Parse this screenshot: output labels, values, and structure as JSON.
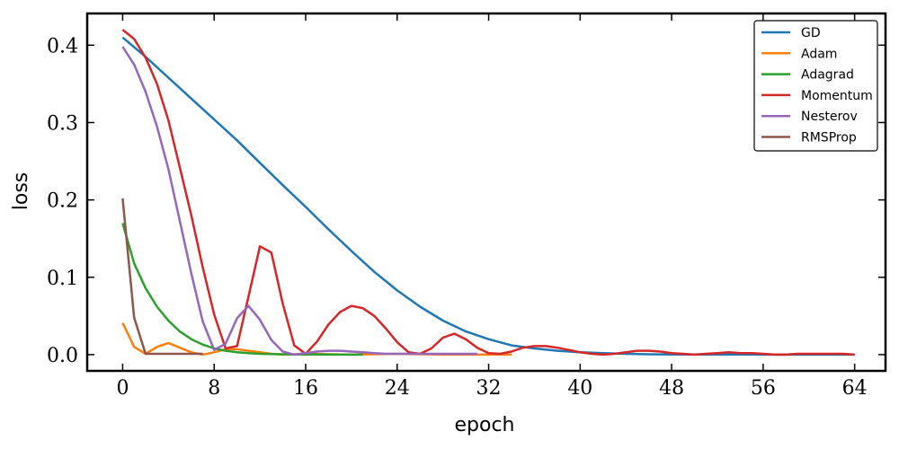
{
  "chart_data": {
    "type": "line",
    "title": "",
    "xlabel": "epoch",
    "ylabel": "loss",
    "xlim": [
      -3.1,
      66.7
    ],
    "ylim": [
      -0.021,
      0.441
    ],
    "xticks": [
      0,
      8,
      16,
      24,
      32,
      40,
      48,
      56,
      64
    ],
    "yticks": [
      0.0,
      0.1,
      0.2,
      0.3,
      0.4
    ],
    "xtick_labels": [
      "0",
      "8",
      "16",
      "24",
      "32",
      "40",
      "48",
      "56",
      "64"
    ],
    "ytick_labels": [
      "0.0",
      "0.1",
      "0.2",
      "0.3",
      "0.4"
    ],
    "grid": false,
    "legend_position": "top-right",
    "series": [
      {
        "name": "GD",
        "color": "#1f77b4",
        "x": [
          0,
          2,
          4,
          6,
          8,
          10,
          12,
          14,
          16,
          18,
          20,
          22,
          24,
          26,
          28,
          30,
          32,
          34,
          36,
          38,
          40,
          42,
          44,
          46,
          48,
          52,
          56,
          60,
          64
        ],
        "y": [
          0.41,
          0.385,
          0.358,
          0.331,
          0.304,
          0.277,
          0.248,
          0.219,
          0.191,
          0.162,
          0.134,
          0.107,
          0.083,
          0.062,
          0.044,
          0.03,
          0.02,
          0.012,
          0.008,
          0.005,
          0.003,
          0.002,
          0.001,
          0.0005,
          0.0003,
          0.0001,
          0.0,
          0.0,
          0.0
        ]
      },
      {
        "name": "Adam",
        "color": "#ff7f0e",
        "x": [
          0,
          1,
          2,
          3,
          4,
          5,
          6,
          7,
          8,
          9,
          10,
          11,
          12,
          13,
          14,
          16,
          20,
          24,
          28,
          34
        ],
        "y": [
          0.041,
          0.01,
          0.001,
          0.01,
          0.015,
          0.009,
          0.003,
          0.0,
          0.003,
          0.007,
          0.007,
          0.005,
          0.003,
          0.001,
          0.0,
          0.001,
          0.0,
          0.001,
          0.0,
          0.0
        ]
      },
      {
        "name": "Adagrad",
        "color": "#2ca02c",
        "x": [
          0,
          1,
          2,
          3,
          4,
          5,
          6,
          7,
          8,
          9,
          10,
          11,
          12,
          13,
          14,
          15,
          17,
          19,
          21
        ],
        "y": [
          0.17,
          0.118,
          0.086,
          0.062,
          0.044,
          0.03,
          0.02,
          0.013,
          0.008,
          0.005,
          0.003,
          0.002,
          0.001,
          0.0007,
          0.0005,
          0.0003,
          0.0001,
          0.0,
          0.0
        ]
      },
      {
        "name": "Momentum",
        "color": "#d62728",
        "x": [
          0,
          1,
          2,
          3,
          4,
          5,
          6,
          7,
          8,
          9,
          10,
          11,
          12,
          13,
          14,
          15,
          16,
          17,
          18,
          19,
          20,
          21,
          22,
          23,
          24,
          25,
          26,
          27,
          28,
          29,
          30,
          31,
          32,
          33,
          34,
          35,
          36,
          37,
          38,
          39,
          40,
          41,
          42,
          43,
          44,
          45,
          46,
          47,
          48,
          49,
          50,
          51,
          52,
          53,
          54,
          55,
          56,
          57,
          58,
          59,
          60,
          61,
          62,
          63,
          64
        ],
        "y": [
          0.42,
          0.408,
          0.384,
          0.35,
          0.303,
          0.242,
          0.18,
          0.113,
          0.052,
          0.008,
          0.011,
          0.075,
          0.14,
          0.132,
          0.066,
          0.012,
          0.001,
          0.017,
          0.039,
          0.055,
          0.063,
          0.06,
          0.05,
          0.034,
          0.016,
          0.003,
          0.001,
          0.008,
          0.022,
          0.027,
          0.02,
          0.009,
          0.002,
          0.001,
          0.004,
          0.009,
          0.011,
          0.011,
          0.009,
          0.006,
          0.003,
          0.001,
          0.0,
          0.001,
          0.003,
          0.005,
          0.005,
          0.004,
          0.002,
          0.001,
          0.0,
          0.001,
          0.002,
          0.003,
          0.002,
          0.002,
          0.001,
          0.0,
          0.0,
          0.001,
          0.001,
          0.001,
          0.001,
          0.001,
          0.0
        ]
      },
      {
        "name": "Nesterov",
        "color": "#9467bd",
        "x": [
          0,
          1,
          2,
          3,
          4,
          5,
          6,
          7,
          8,
          9,
          10,
          11,
          12,
          13,
          14,
          15,
          16,
          17,
          18,
          19,
          20,
          21,
          22,
          23,
          24,
          26,
          28,
          30,
          31
        ],
        "y": [
          0.398,
          0.375,
          0.34,
          0.295,
          0.24,
          0.173,
          0.105,
          0.043,
          0.006,
          0.014,
          0.047,
          0.063,
          0.045,
          0.019,
          0.004,
          0.0,
          0.002,
          0.004,
          0.005,
          0.005,
          0.004,
          0.003,
          0.002,
          0.001,
          0.001,
          0.001,
          0.001,
          0.001,
          0.001
        ]
      },
      {
        "name": "RMSProp",
        "color": "#8c564b",
        "x": [
          0,
          1,
          2,
          3,
          4,
          5,
          6,
          7
        ],
        "y": [
          0.202,
          0.048,
          0.001,
          0.001,
          0.001,
          0.001,
          0.001,
          0.001
        ]
      }
    ]
  }
}
